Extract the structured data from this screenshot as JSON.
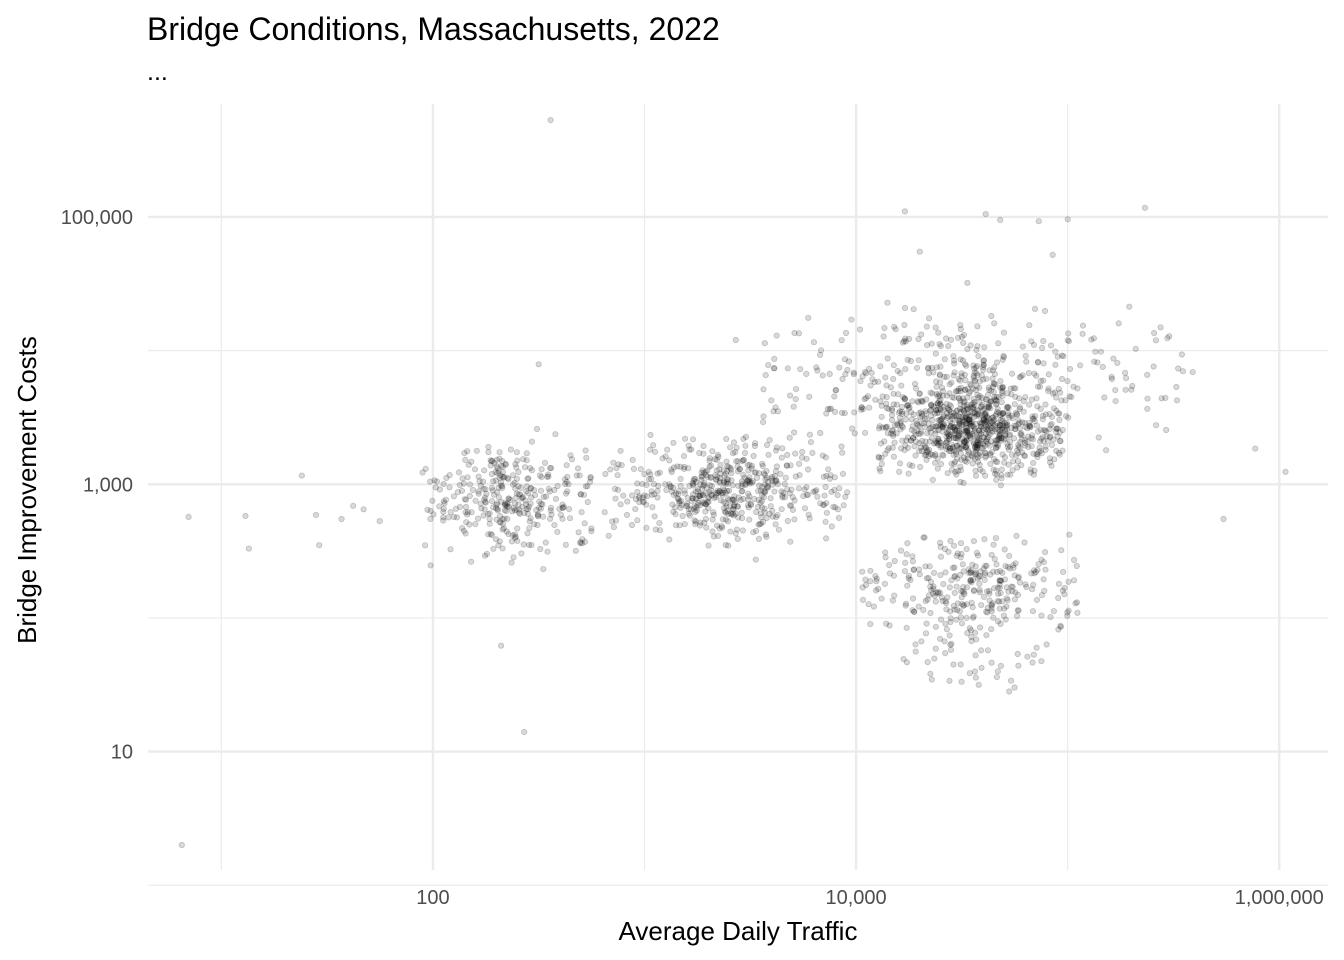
{
  "chart_data": {
    "type": "scatter",
    "title": "Bridge Conditions, Massachusetts, 2022",
    "subtitle": "...",
    "xlabel": "Average Daily Traffic",
    "ylabel": "Bridge Improvement Costs",
    "x_scale": "log10",
    "y_scale": "log10",
    "xlim": [
      4.5,
      1700000
    ],
    "ylim": [
      1.3,
      700000
    ],
    "x_ticks": [
      {
        "value": 100,
        "label": "100"
      },
      {
        "value": 10000,
        "label": "10,000"
      },
      {
        "value": 1000000,
        "label": "1,000,000"
      }
    ],
    "y_ticks": [
      {
        "value": 10,
        "label": "10"
      },
      {
        "value": 1000,
        "label": "1,000"
      },
      {
        "value": 100000,
        "label": "100,000"
      }
    ],
    "x_minor_gridlines": [
      10,
      1000,
      100000
    ],
    "y_minor_gridlines": [
      1,
      100,
      10000
    ],
    "grid": true,
    "legend": "none",
    "point_color": "#000000",
    "point_alpha": 0.15,
    "points_note_outliers": [
      {
        "x": 6.5,
        "y": 2
      },
      {
        "x": 7,
        "y": 570
      },
      {
        "x": 13,
        "y": 580
      },
      {
        "x": 13.5,
        "y": 330
      },
      {
        "x": 24,
        "y": 1160
      },
      {
        "x": 28,
        "y": 590
      },
      {
        "x": 29,
        "y": 350
      },
      {
        "x": 37,
        "y": 550
      },
      {
        "x": 42,
        "y": 690
      },
      {
        "x": 47,
        "y": 650
      },
      {
        "x": 56,
        "y": 530
      },
      {
        "x": 210,
        "y": 62
      },
      {
        "x": 270,
        "y": 14
      },
      {
        "x": 360,
        "y": 530000
      },
      {
        "x": 316,
        "y": 7900
      },
      {
        "x": 2700,
        "y": 12000
      },
      {
        "x": 17000,
        "y": 110000
      },
      {
        "x": 20000,
        "y": 55000
      },
      {
        "x": 41000,
        "y": 105000
      },
      {
        "x": 48000,
        "y": 95000
      },
      {
        "x": 73000,
        "y": 93000
      },
      {
        "x": 85000,
        "y": 52000
      },
      {
        "x": 100000,
        "y": 96000
      },
      {
        "x": 232000,
        "y": 117000
      },
      {
        "x": 390000,
        "y": 6900
      },
      {
        "x": 545000,
        "y": 550
      },
      {
        "x": 770000,
        "y": 1850
      },
      {
        "x": 1070000,
        "y": 1240
      }
    ],
    "clusters_note": "Dense cloud of roughly 2,500 bridges; x mostly 90 to 600,000 (densest 15,000 to 70,000), y mostly 20 to 60,000 (densest 200 to 10,000).",
    "clusters": [
      {
        "name": "",
        "x_range": [
          85,
          600
        ],
        "y_range": [
          150,
          4000
        ],
        "n": 330
      },
      {
        "name": "",
        "x_range": [
          600,
          10000
        ],
        "y_range": [
          200,
          4000
        ],
        "n": 520
      },
      {
        "name": "",
        "x_range": [
          10000,
          120000
        ],
        "y_range": [
          40,
          700
        ],
        "n": 300
      },
      {
        "name": "",
        "x_range": [
          12000,
          100000
        ],
        "y_range": [
          700,
          9000
        ],
        "n": 760
      },
      {
        "name": "",
        "x_range": [
          3000,
          400000
        ],
        "y_range": [
          1000,
          40000
        ],
        "n": 380
      },
      {
        "name": "",
        "x_range": [
          15000,
          80000
        ],
        "y_range": [
          18,
          120
        ],
        "n": 45
      }
    ]
  }
}
